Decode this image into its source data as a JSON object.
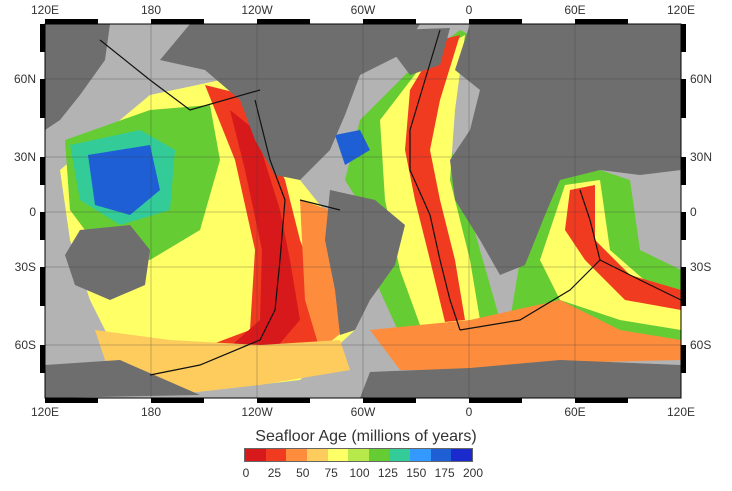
{
  "title": "Seafloor Age (millions of years)",
  "top_lon_labels": [
    "120E",
    "180",
    "120W",
    "60W",
    "0",
    "60E",
    "120E"
  ],
  "bottom_lon_labels": [
    "120E",
    "180",
    "120W",
    "60W",
    "0",
    "60E",
    "120E"
  ],
  "left_lat_labels": [
    "60N",
    "30N",
    "0",
    "30S",
    "60S"
  ],
  "right_lat_labels": [
    "60N",
    "30N",
    "0",
    "30S",
    "60S"
  ],
  "legend": {
    "ticks": [
      "0",
      "25",
      "50",
      "75",
      "100",
      "125",
      "150",
      "175",
      "200"
    ],
    "colors": [
      "#d7191c",
      "#f03b20",
      "#fd8d3c",
      "#fecc5c",
      "#ffff66",
      "#b8e94a",
      "#66cc33",
      "#33cc99",
      "#3399ff",
      "#1f5fd6",
      "#1a2acc"
    ]
  },
  "colors": {
    "land": "#6e6e6e",
    "shelf": "#b3b3b3",
    "young_crust": "#d7191c",
    "old_crust": "#2142d6",
    "ridge_lines": "#111111"
  }
}
